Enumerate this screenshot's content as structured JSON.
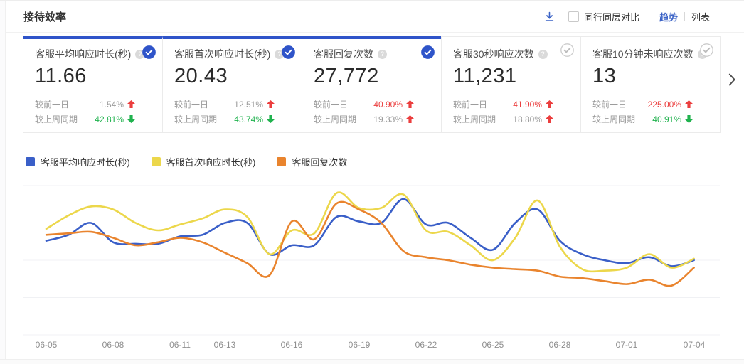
{
  "header": {
    "title": "接待效率",
    "compare_label": "同行同层对比",
    "compare_checked": false,
    "view_tabs": {
      "trend": "趋势",
      "list": "列表",
      "active": "trend"
    }
  },
  "colors": {
    "accent_blue": "#2f54c9",
    "link_blue": "#3a62c6",
    "up_red": "#eb3e3e",
    "down_green": "#20b24e",
    "muted_text": "#9b9b9b",
    "grid_line": "#f0f1f4",
    "tick_text": "#8f8f8f"
  },
  "cards": [
    {
      "title": "客服平均响应时长(秒)",
      "value": "11.66",
      "selected": true,
      "rows": [
        {
          "label": "较前一日",
          "pct": "1.54%",
          "pct_color": "gray",
          "arrow": "up",
          "arrow_color": "red"
        },
        {
          "label": "较上周同期",
          "pct": "42.81%",
          "pct_color": "green",
          "arrow": "down",
          "arrow_color": "green"
        }
      ]
    },
    {
      "title": "客服首次响应时长(秒)",
      "value": "20.43",
      "selected": true,
      "rows": [
        {
          "label": "较前一日",
          "pct": "12.51%",
          "pct_color": "gray",
          "arrow": "up",
          "arrow_color": "red"
        },
        {
          "label": "较上周同期",
          "pct": "43.74%",
          "pct_color": "green",
          "arrow": "down",
          "arrow_color": "green"
        }
      ]
    },
    {
      "title": "客服回复次数",
      "value": "27,772",
      "selected": true,
      "rows": [
        {
          "label": "较前一日",
          "pct": "40.90%",
          "pct_color": "red",
          "arrow": "up",
          "arrow_color": "red"
        },
        {
          "label": "较上周同期",
          "pct": "19.33%",
          "pct_color": "gray",
          "arrow": "up",
          "arrow_color": "red"
        }
      ]
    },
    {
      "title": "客服30秒响应次数",
      "value": "11,231",
      "selected": false,
      "rows": [
        {
          "label": "较前一日",
          "pct": "41.90%",
          "pct_color": "red",
          "arrow": "up",
          "arrow_color": "red"
        },
        {
          "label": "较上周同期",
          "pct": "18.80%",
          "pct_color": "gray",
          "arrow": "up",
          "arrow_color": "red"
        }
      ]
    },
    {
      "title": "客服10分钟未响应次数",
      "value": "13",
      "selected": false,
      "rows": [
        {
          "label": "较前一日",
          "pct": "225.00%",
          "pct_color": "red",
          "arrow": "up",
          "arrow_color": "red"
        },
        {
          "label": "较上周同期",
          "pct": "40.91%",
          "pct_color": "green",
          "arrow": "down",
          "arrow_color": "green"
        }
      ]
    }
  ],
  "chart_data": {
    "type": "line",
    "title": "",
    "xlabel": "",
    "ylabel": "",
    "x": [
      "06-05",
      "06-06",
      "06-07",
      "06-08",
      "06-09",
      "06-10",
      "06-11",
      "06-12",
      "06-13",
      "06-14",
      "06-15",
      "06-16",
      "06-17",
      "06-18",
      "06-19",
      "06-20",
      "06-21",
      "06-22",
      "06-23",
      "06-24",
      "06-25",
      "06-26",
      "06-27",
      "06-28",
      "06-29",
      "06-30",
      "07-01",
      "07-02",
      "07-03",
      "07-04"
    ],
    "x_tick_labels": [
      "06-05",
      "06-08",
      "06-11",
      "06-13",
      "06-16",
      "06-19",
      "06-22",
      "06-25",
      "06-28",
      "07-01",
      "07-04"
    ],
    "y_axis_visible": false,
    "y_scale_note": "relative 0-100, estimated from plot (no y-axis labels shown)",
    "ylim": [
      0,
      100
    ],
    "grid": true,
    "legend_position": "top-left",
    "series": [
      {
        "name": "客服平均响应时长(秒)",
        "color": "#3a5fc8",
        "values": [
          63,
          67,
          75,
          62,
          61,
          61,
          66,
          67,
          75,
          75,
          54,
          60,
          60,
          79,
          76,
          75,
          91,
          74,
          75,
          65,
          57,
          75,
          84,
          63,
          54,
          50,
          48,
          52,
          46,
          50
        ]
      },
      {
        "name": "客服首次响应时长(秒)",
        "color": "#ecd74b",
        "values": [
          71,
          80,
          86,
          84,
          75,
          70,
          74,
          78,
          84,
          79,
          54,
          70,
          68,
          95,
          85,
          85,
          94,
          70,
          69,
          60,
          50,
          65,
          90,
          59,
          44,
          43,
          45,
          54,
          45,
          51
        ]
      },
      {
        "name": "客服回复次数",
        "color": "#e9842e",
        "values": [
          67,
          68,
          69,
          65,
          60,
          62,
          65,
          62,
          55,
          48,
          40,
          76,
          64,
          88,
          84,
          75,
          56,
          52,
          50,
          47,
          45,
          44,
          43,
          39,
          38,
          36,
          34,
          37,
          33,
          45
        ]
      }
    ]
  }
}
